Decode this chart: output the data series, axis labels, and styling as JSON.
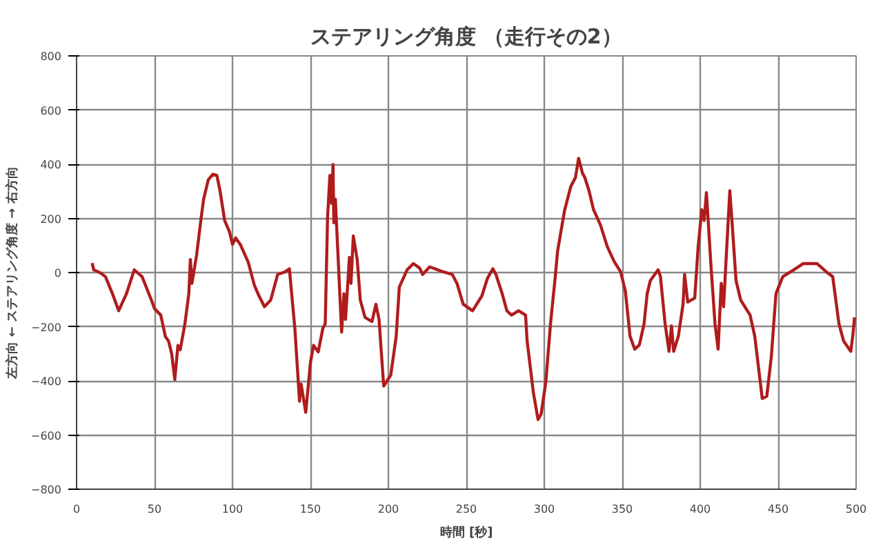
{
  "chart_data": {
    "type": "line",
    "title": "ステアリング角度 （走行その2）",
    "xlabel": "時間 [秒]",
    "ylabel": "左方向 ← ステアリング角度 → 右方向",
    "xlim": [
      0,
      500
    ],
    "xticks": [
      0,
      50,
      100,
      150,
      200,
      250,
      300,
      350,
      400,
      450,
      500
    ],
    "ylim": [
      -800,
      800
    ],
    "yticks": [
      -800,
      -600,
      -400,
      -200,
      0,
      200,
      400,
      600,
      800
    ],
    "grid": true,
    "marker": "none",
    "line_style": "solid",
    "series": [
      {
        "color": "#b01c1c",
        "x": [
          10,
          11,
          15.5,
          18.5,
          23,
          27,
          32,
          37,
          42,
          48,
          50,
          54,
          57,
          59,
          61,
          63,
          65,
          66.5,
          69.5,
          72,
          73,
          74,
          77,
          80,
          81.5,
          84.5,
          87.5,
          90,
          92,
          95,
          98,
          100,
          102,
          105,
          110,
          114,
          117,
          120.5,
          124.5,
          129,
          133.5,
          136.5,
          140,
          143,
          144,
          147,
          150,
          152,
          155,
          158,
          159.5,
          161,
          162.5,
          163.5,
          164.5,
          165,
          166,
          170,
          171.5,
          172.5,
          175,
          176,
          177.5,
          180,
          182,
          185,
          189.5,
          192,
          194,
          197,
          201.5,
          205,
          207,
          212,
          216,
          220,
          222,
          226.5,
          234,
          241,
          244,
          248,
          254,
          260,
          263.5,
          267,
          269,
          273,
          276,
          279,
          283.5,
          288,
          289,
          293,
          296,
          298,
          301,
          304,
          307,
          308.5,
          313,
          317,
          320,
          322,
          324.5,
          326,
          328.7,
          331.6,
          336,
          340.4,
          344.8,
          349,
          352,
          355,
          358,
          361,
          364,
          366,
          368,
          373,
          374.5,
          377.5,
          380,
          381.6,
          383,
          386,
          389,
          390,
          392,
          396.5,
          398.7,
          401,
          402.5,
          404,
          407,
          409.5,
          411.5,
          413.5,
          415,
          419,
          420,
          423,
          426,
          432,
          435,
          439.8,
          442.7,
          445.6,
          448.6,
          453,
          460,
          466,
          475,
          481,
          485,
          489,
          492,
          496.6,
          498,
          499
        ],
        "values": [
          35,
          10,
          -2,
          -15,
          -78,
          -141,
          -78,
          10,
          -15,
          -102,
          -133,
          -157,
          -237,
          -253,
          -300,
          -395,
          -269,
          -285,
          -189,
          -78,
          48,
          -40,
          65,
          206,
          271,
          343,
          363,
          359,
          302,
          192,
          152,
          104,
          128,
          104,
          40,
          -46,
          -86,
          -126,
          -102,
          -7,
          2,
          14,
          -205,
          -475,
          -412,
          -516,
          -333,
          -269,
          -293,
          -205,
          -189,
          206,
          359,
          256,
          399,
          184,
          271,
          -220,
          -78,
          -173,
          56,
          -40,
          135,
          48,
          -102,
          -165,
          -181,
          -117,
          -173,
          -419,
          -379,
          -237,
          -54,
          10,
          33,
          17,
          -7,
          21,
          5,
          -7,
          -40,
          -117,
          -141,
          -86,
          -22,
          14,
          -7,
          -78,
          -141,
          -157,
          -141,
          -157,
          -253,
          -443,
          -543,
          -522,
          -403,
          -189,
          -18,
          78,
          229,
          318,
          351,
          422,
          367,
          351,
          302,
          232,
          176,
          96,
          41,
          2,
          -68,
          -235,
          -283,
          -267,
          -189,
          -78,
          -30,
          10,
          -15,
          -189,
          -291,
          -197,
          -291,
          -235,
          -117,
          -7,
          -109,
          -94,
          96,
          232,
          192,
          295,
          18,
          -189,
          -283,
          -40,
          -126,
          302,
          222,
          -30,
          -102,
          -157,
          -235,
          -465,
          -457,
          -313,
          -78,
          -15,
          10,
          33,
          33,
          2,
          -15,
          -189,
          -253,
          -291,
          -227,
          -165
        ]
      }
    ]
  }
}
